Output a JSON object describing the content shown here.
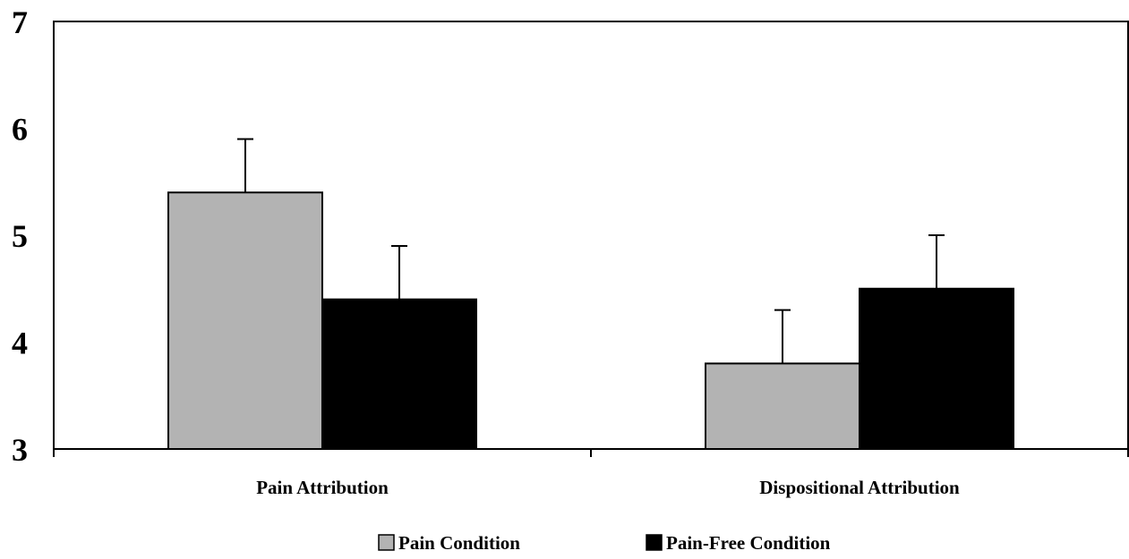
{
  "chart_data": {
    "type": "bar",
    "categories": [
      "Pain Attribution",
      "Dispositional Attribution"
    ],
    "series": [
      {
        "name": "Pain Condition",
        "values": [
          5.4,
          3.8
        ],
        "error": [
          0.5,
          0.5
        ],
        "color": "#b3b3b3"
      },
      {
        "name": "Pain-Free Condition",
        "values": [
          4.4,
          4.5
        ],
        "error": [
          0.5,
          0.5
        ],
        "color": "#000000"
      }
    ],
    "ylim": [
      3,
      7
    ],
    "yticks": [
      "3",
      "4",
      "5",
      "6",
      "7"
    ],
    "grid": false,
    "legend_position": "bottom-center"
  }
}
